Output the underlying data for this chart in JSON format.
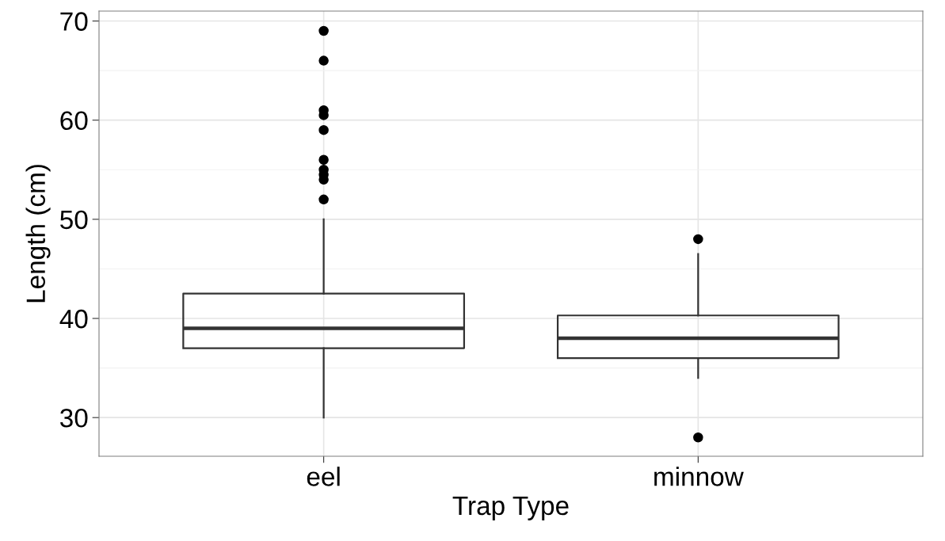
{
  "chart_data": {
    "type": "box",
    "xlabel": "Trap Type",
    "ylabel": "Length (cm)",
    "categories": [
      "eel",
      "minnow"
    ],
    "boxes": [
      {
        "low": 30,
        "q1": 37,
        "median": 39,
        "q3": 42.5,
        "high": 50,
        "outliers": [
          69,
          66,
          61,
          60.5,
          59,
          56,
          55,
          54.5,
          54,
          52
        ]
      },
      {
        "low": 34,
        "q1": 36,
        "median": 38,
        "q3": 40.3,
        "high": 46.5,
        "outliers": [
          48,
          28
        ]
      }
    ],
    "color": "#333333",
    "ylim": [
      26.1,
      71
    ],
    "yticks": [
      30,
      40,
      50,
      60,
      70,
      {
        "value": 35,
        "label": null
      },
      {
        "value": 45,
        "label": null
      },
      {
        "value": 55,
        "label": null
      },
      {
        "value": 65,
        "label": null
      }
    ],
    "grid": true
  }
}
